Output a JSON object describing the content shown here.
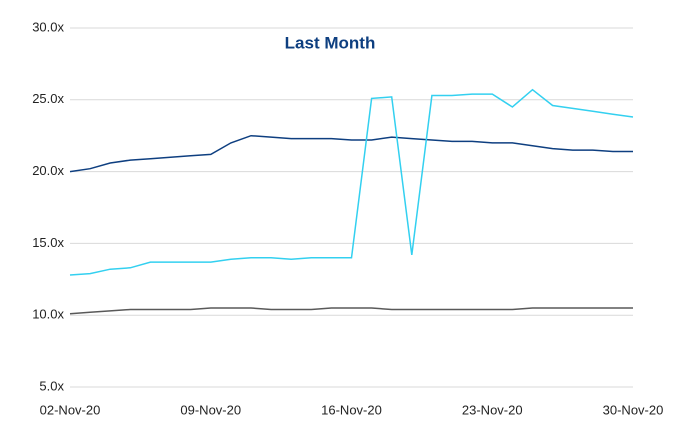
{
  "chart_data": {
    "type": "line",
    "title": "Last Month",
    "categories": [
      "02-Nov-20",
      null,
      null,
      null,
      null,
      null,
      null,
      "09-Nov-20",
      null,
      null,
      null,
      null,
      null,
      null,
      "16-Nov-20",
      null,
      null,
      null,
      null,
      null,
      null,
      "23-Nov-20",
      null,
      null,
      null,
      null,
      null,
      null,
      "30-Nov-20"
    ],
    "series": [
      {
        "color": "#0e3f80",
        "values": [
          20.0,
          20.2,
          20.6,
          20.8,
          20.9,
          21.0,
          21.1,
          21.2,
          22.0,
          22.5,
          22.4,
          22.3,
          22.3,
          22.3,
          22.2,
          22.2,
          22.4,
          22.3,
          22.2,
          22.1,
          22.1,
          22.0,
          22.0,
          21.8,
          21.6,
          21.5,
          21.5,
          21.4,
          21.4
        ]
      },
      {
        "color": "#33d0f0",
        "values": [
          12.8,
          12.9,
          13.2,
          13.3,
          13.7,
          13.7,
          13.7,
          13.7,
          13.9,
          14.0,
          14.0,
          13.9,
          14.0,
          14.0,
          14.0,
          25.1,
          25.2,
          14.2,
          25.3,
          25.3,
          25.4,
          25.4,
          24.5,
          25.7,
          24.6,
          24.4,
          24.2,
          24.0,
          23.8
        ]
      },
      {
        "color": "#595959",
        "values": [
          10.1,
          10.2,
          10.3,
          10.4,
          10.4,
          10.4,
          10.4,
          10.5,
          10.5,
          10.5,
          10.4,
          10.4,
          10.4,
          10.5,
          10.5,
          10.5,
          10.4,
          10.4,
          10.4,
          10.4,
          10.4,
          10.4,
          10.4,
          10.5,
          10.5,
          10.5,
          10.5,
          10.5,
          10.5
        ]
      }
    ],
    "ylim": [
      5,
      30
    ],
    "yticks": [
      {
        "value": 5,
        "label": "5.0x"
      },
      {
        "value": 10,
        "label": "10.0x"
      },
      {
        "value": 15,
        "label": "15.0x"
      },
      {
        "value": 20,
        "label": "20.0x"
      },
      {
        "value": 25,
        "label": "25.0x"
      },
      {
        "value": 30,
        "label": "30.0x"
      }
    ],
    "grid": true
  }
}
